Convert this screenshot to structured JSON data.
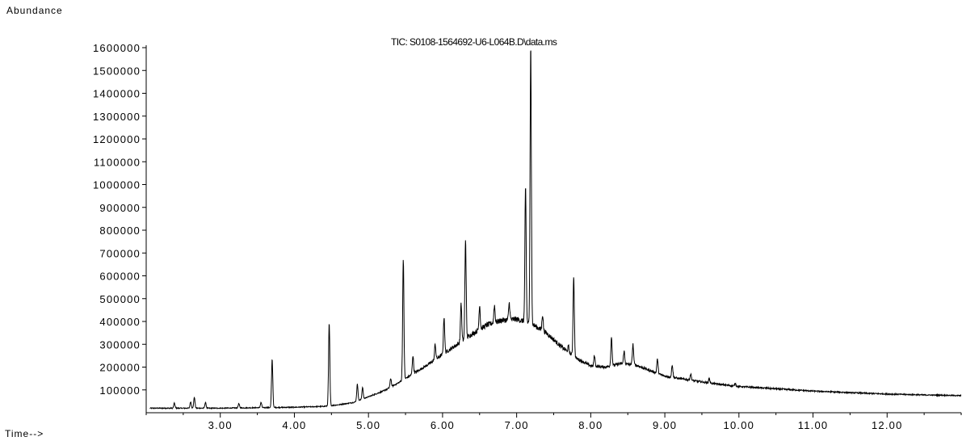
{
  "chart_data": {
    "type": "line",
    "title": "TIC: S0108-1564692-U6-L064B.D\\data.ms",
    "xlabel": "Time-->",
    "ylabel": "Abundance",
    "xlim": [
      2.0,
      13.0
    ],
    "ylim": [
      0,
      1600000
    ],
    "x_ticks": [
      3.0,
      4.0,
      5.0,
      6.0,
      7.0,
      8.0,
      9.0,
      10.0,
      11.0,
      12.0
    ],
    "x_tick_labels": [
      "3.00",
      "4.00",
      "5.00",
      "6.00",
      "7.00",
      "8.00",
      "9.00",
      "10.00",
      "11.00",
      "12.00"
    ],
    "y_ticks": [
      100000,
      200000,
      300000,
      400000,
      500000,
      600000,
      700000,
      800000,
      900000,
      1000000,
      1100000,
      1200000,
      1300000,
      1400000,
      1500000,
      1600000
    ],
    "y_tick_labels": [
      "100000",
      "200000",
      "300000",
      "400000",
      "500000",
      "600000",
      "700000",
      "800000",
      "900000",
      "1000000",
      "1100000",
      "1200000",
      "1300000",
      "1400000",
      "1500000",
      "1600000"
    ],
    "grid": false,
    "baseline": [
      [
        2.05,
        20000
      ],
      [
        2.5,
        20000
      ],
      [
        3.0,
        20000
      ],
      [
        3.5,
        22000
      ],
      [
        4.0,
        24000
      ],
      [
        4.4,
        28000
      ],
      [
        4.6,
        35000
      ],
      [
        4.8,
        45000
      ],
      [
        5.0,
        70000
      ],
      [
        5.2,
        95000
      ],
      [
        5.4,
        130000
      ],
      [
        5.6,
        170000
      ],
      [
        5.8,
        210000
      ],
      [
        6.0,
        255000
      ],
      [
        6.2,
        300000
      ],
      [
        6.4,
        345000
      ],
      [
        6.6,
        385000
      ],
      [
        6.8,
        405000
      ],
      [
        7.0,
        410000
      ],
      [
        7.2,
        390000
      ],
      [
        7.4,
        350000
      ],
      [
        7.6,
        290000
      ],
      [
        7.8,
        240000
      ],
      [
        8.0,
        205000
      ],
      [
        8.2,
        200000
      ],
      [
        8.4,
        215000
      ],
      [
        8.6,
        210000
      ],
      [
        8.8,
        185000
      ],
      [
        9.0,
        160000
      ],
      [
        9.2,
        150000
      ],
      [
        9.4,
        140000
      ],
      [
        9.6,
        130000
      ],
      [
        9.8,
        122000
      ],
      [
        10.0,
        115000
      ],
      [
        10.5,
        105000
      ],
      [
        11.0,
        95000
      ],
      [
        11.5,
        88000
      ],
      [
        12.0,
        82000
      ],
      [
        12.5,
        78000
      ],
      [
        13.0,
        75000
      ]
    ],
    "peaks": [
      {
        "x": 2.38,
        "y": 42000
      },
      {
        "x": 2.6,
        "y": 48000
      },
      {
        "x": 2.65,
        "y": 68000
      },
      {
        "x": 2.8,
        "y": 45000
      },
      {
        "x": 3.25,
        "y": 40000
      },
      {
        "x": 3.55,
        "y": 45000
      },
      {
        "x": 3.7,
        "y": 235000
      },
      {
        "x": 4.47,
        "y": 392000
      },
      {
        "x": 4.85,
        "y": 125000
      },
      {
        "x": 4.92,
        "y": 110000
      },
      {
        "x": 5.3,
        "y": 150000
      },
      {
        "x": 5.47,
        "y": 670000
      },
      {
        "x": 5.6,
        "y": 250000
      },
      {
        "x": 5.9,
        "y": 300000
      },
      {
        "x": 6.02,
        "y": 420000
      },
      {
        "x": 6.25,
        "y": 480000
      },
      {
        "x": 6.31,
        "y": 762000
      },
      {
        "x": 6.5,
        "y": 470000
      },
      {
        "x": 6.7,
        "y": 470000
      },
      {
        "x": 6.9,
        "y": 480000
      },
      {
        "x": 7.12,
        "y": 985000
      },
      {
        "x": 7.19,
        "y": 1610000
      },
      {
        "x": 7.35,
        "y": 430000
      },
      {
        "x": 7.7,
        "y": 290000
      },
      {
        "x": 7.77,
        "y": 600000
      },
      {
        "x": 8.05,
        "y": 250000
      },
      {
        "x": 8.28,
        "y": 330000
      },
      {
        "x": 8.45,
        "y": 270000
      },
      {
        "x": 8.57,
        "y": 300000
      },
      {
        "x": 8.9,
        "y": 235000
      },
      {
        "x": 9.1,
        "y": 210000
      },
      {
        "x": 9.35,
        "y": 170000
      },
      {
        "x": 9.6,
        "y": 150000
      },
      {
        "x": 9.95,
        "y": 128000
      }
    ]
  }
}
